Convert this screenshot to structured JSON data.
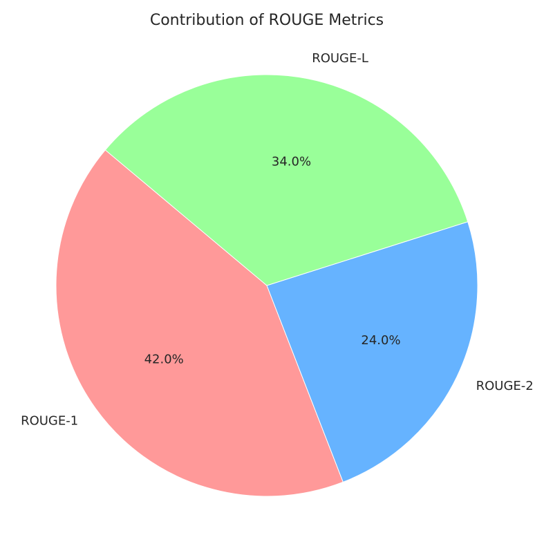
{
  "chart_data": {
    "type": "pie",
    "title": "Contribution of ROUGE Metrics",
    "categories": [
      "ROUGE-1",
      "ROUGE-2",
      "ROUGE-L"
    ],
    "values": [
      42.0,
      24.0,
      34.0
    ],
    "value_labels": [
      "42.0%",
      "24.0%",
      "34.0%"
    ],
    "colors": [
      "#ff9999",
      "#66b3ff",
      "#99ff99"
    ],
    "start_angle_deg": 140,
    "direction": "counterclockwise",
    "legend": "none"
  }
}
